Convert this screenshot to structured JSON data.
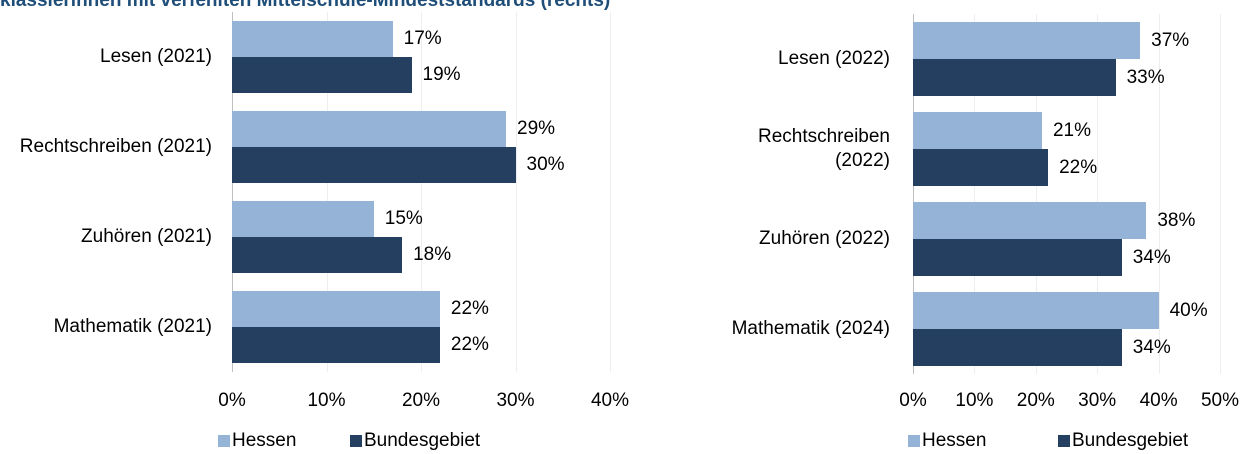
{
  "chart_data": [
    {
      "type": "bar",
      "orientation": "horizontal",
      "title": "klässlerinnen mit verfehlten Mittelschule-Mindeststandards (rechts)",
      "categories": [
        "Lesen (2021)",
        "Rechtschreiben (2021)",
        "Zuhören (2021)",
        "Mathematik (2021)"
      ],
      "series": [
        {
          "name": "Hessen",
          "color": "#95b3d7",
          "values": [
            17,
            29,
            15,
            22
          ],
          "value_labels": [
            "17%",
            "29%",
            "15%",
            "22%"
          ]
        },
        {
          "name": "Bundesgebiet",
          "color": "#243f60",
          "values": [
            19,
            30,
            18,
            22
          ],
          "value_labels": [
            "19%",
            "30%",
            "18%",
            "22%"
          ]
        }
      ],
      "xlim": [
        0,
        40
      ],
      "xticks": [
        {
          "value": 0,
          "label": "0%"
        },
        {
          "value": 10,
          "label": "10%"
        },
        {
          "value": 20,
          "label": "20%"
        },
        {
          "value": 30,
          "label": "30%"
        },
        {
          "value": 40,
          "label": "40%"
        }
      ],
      "grid": true,
      "legend": "bottom"
    },
    {
      "type": "bar",
      "orientation": "horizontal",
      "categories": [
        "Lesen (2022)",
        "Rechtschreiben (2022)",
        "Zuhören (2022)",
        "Mathematik (2024)"
      ],
      "series": [
        {
          "name": "Hessen",
          "color": "#95b3d7",
          "values": [
            37,
            21,
            38,
            40
          ],
          "value_labels": [
            "37%",
            "21%",
            "38%",
            "40%"
          ]
        },
        {
          "name": "Bundesgebiet",
          "color": "#243f60",
          "values": [
            33,
            22,
            34,
            34
          ],
          "value_labels": [
            "33%",
            "22%",
            "34%",
            "34%"
          ]
        }
      ],
      "xlim": [
        0,
        50
      ],
      "xticks": [
        {
          "value": 0,
          "label": "0%"
        },
        {
          "value": 10,
          "label": "10%"
        },
        {
          "value": 20,
          "label": "20%"
        },
        {
          "value": 30,
          "label": "30%"
        },
        {
          "value": 40,
          "label": "40%"
        },
        {
          "value": 50,
          "label": "50%"
        }
      ],
      "grid": true,
      "legend": "bottom"
    }
  ]
}
